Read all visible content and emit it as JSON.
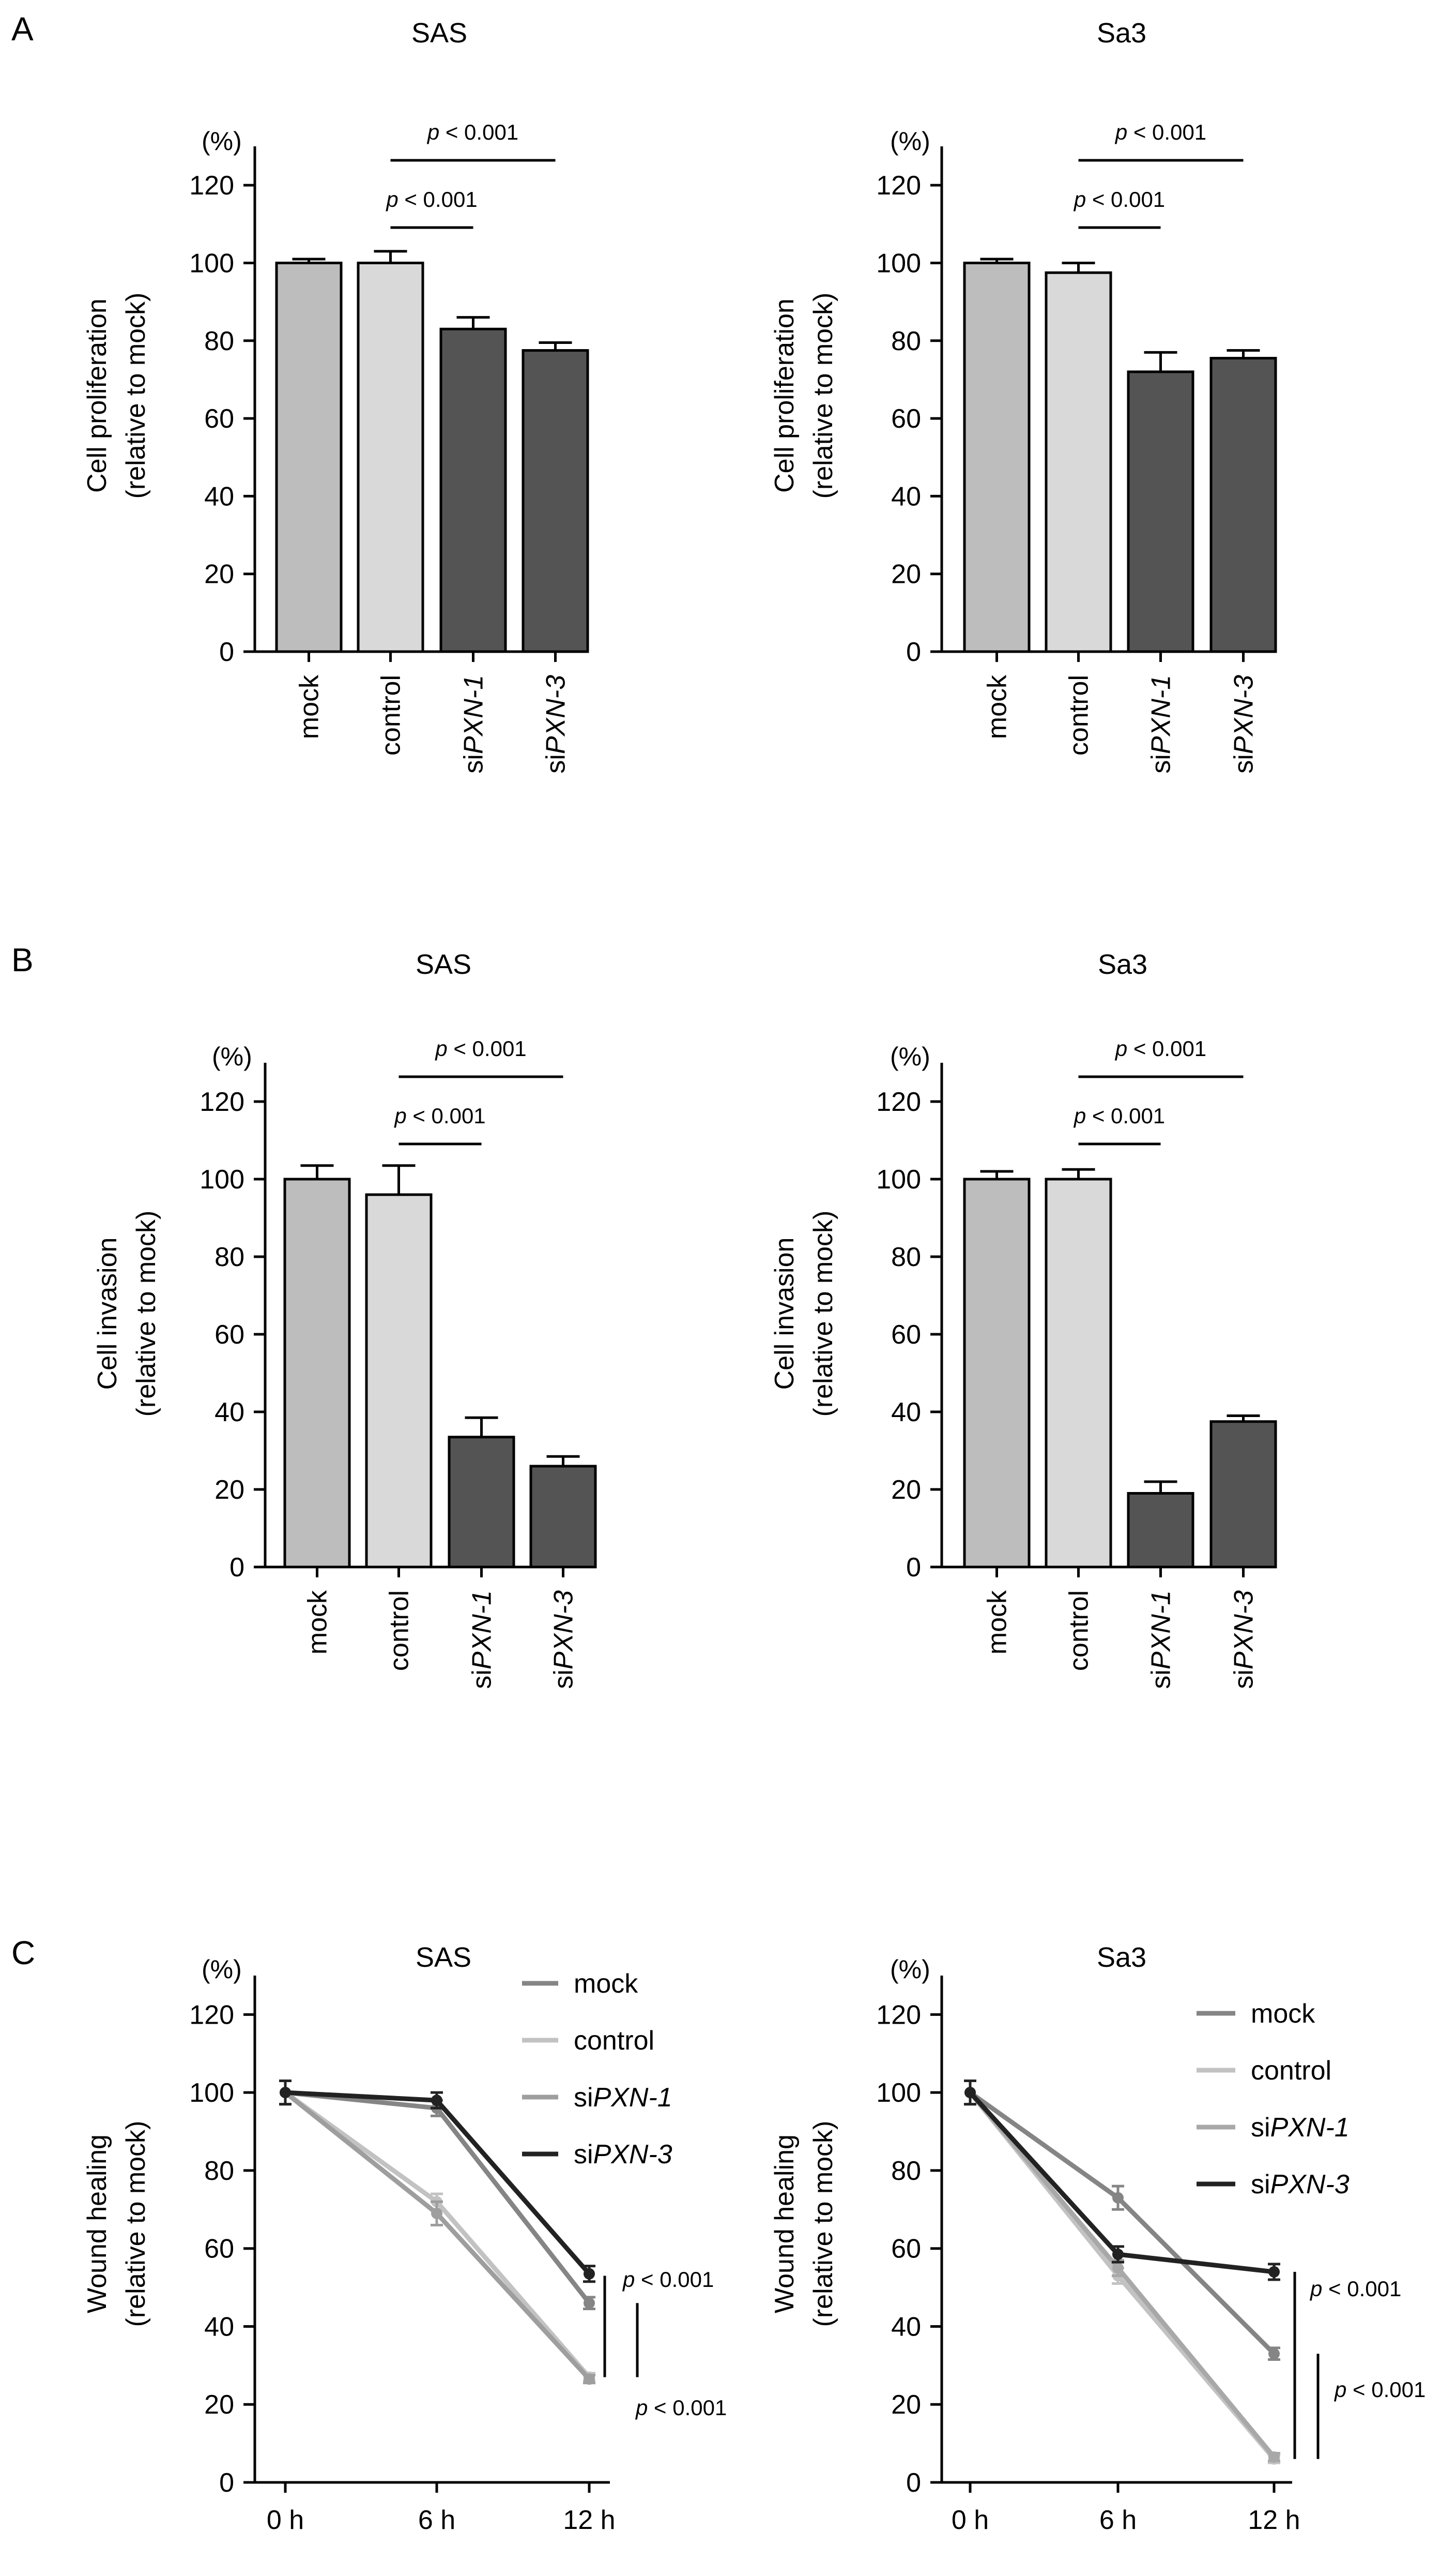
{
  "panels": [
    "A",
    "B",
    "C"
  ],
  "chart_data": [
    {
      "id": "a_sas",
      "panel": "A",
      "type": "bar",
      "title": "SAS",
      "unit_label": "(%)",
      "ylabel_line1": "Cell proliferation",
      "ylabel_line2": "(relative to mock)",
      "ylim": [
        0,
        130
      ],
      "yticks": [
        0,
        20,
        40,
        60,
        80,
        100,
        120
      ],
      "categories": [
        {
          "pre": "",
          "ital": "mock",
          "italic": false
        },
        {
          "pre": "",
          "ital": "control",
          "italic": false
        },
        {
          "pre": "si",
          "ital": "PXN-1",
          "italic": true
        },
        {
          "pre": "si",
          "ital": "PXN-3",
          "italic": true
        }
      ],
      "values": [
        100,
        100,
        83,
        77.5
      ],
      "errors": [
        1,
        3,
        3,
        2
      ],
      "bar_colors": [
        "#bdbdbd",
        "#d9d9d9",
        "#545454",
        "#545454"
      ],
      "significance": [
        {
          "from": 1,
          "to": 2,
          "label": "< 0.001",
          "level": 0
        },
        {
          "from": 1,
          "to": 3,
          "label": "< 0.001",
          "level": 1
        }
      ]
    },
    {
      "id": "a_sa3",
      "panel": "A",
      "type": "bar",
      "title": "Sa3",
      "unit_label": "(%)",
      "ylabel_line1": "Cell proliferation",
      "ylabel_line2": "(relative to mock)",
      "ylim": [
        0,
        130
      ],
      "yticks": [
        0,
        20,
        40,
        60,
        80,
        100,
        120
      ],
      "categories": [
        {
          "pre": "",
          "ital": "mock",
          "italic": false
        },
        {
          "pre": "",
          "ital": "control",
          "italic": false
        },
        {
          "pre": "si",
          "ital": "PXN-1",
          "italic": true
        },
        {
          "pre": "si",
          "ital": "PXN-3",
          "italic": true
        }
      ],
      "values": [
        100,
        97.5,
        72,
        75.5
      ],
      "errors": [
        1,
        2.5,
        5,
        2
      ],
      "bar_colors": [
        "#bdbdbd",
        "#d9d9d9",
        "#545454",
        "#545454"
      ],
      "significance": [
        {
          "from": 1,
          "to": 2,
          "label": "< 0.001",
          "level": 0
        },
        {
          "from": 1,
          "to": 3,
          "label": "< 0.001",
          "level": 1
        }
      ]
    },
    {
      "id": "b_sas",
      "panel": "B",
      "type": "bar",
      "title": "SAS",
      "unit_label": "(%)",
      "ylabel_line1": "Cell invasion",
      "ylabel_line2": "(relative to mock)",
      "ylim": [
        0,
        130
      ],
      "yticks": [
        0,
        20,
        40,
        60,
        80,
        100,
        120
      ],
      "categories": [
        {
          "pre": "",
          "ital": "mock",
          "italic": false
        },
        {
          "pre": "",
          "ital": "control",
          "italic": false
        },
        {
          "pre": "si",
          "ital": "PXN-1",
          "italic": true
        },
        {
          "pre": "si",
          "ital": "PXN-3",
          "italic": true
        }
      ],
      "values": [
        100,
        96,
        33.5,
        26
      ],
      "errors": [
        3.5,
        7.5,
        5,
        2.5
      ],
      "bar_colors": [
        "#bdbdbd",
        "#d9d9d9",
        "#545454",
        "#545454"
      ],
      "significance": [
        {
          "from": 1,
          "to": 2,
          "label": "< 0.001",
          "level": 0
        },
        {
          "from": 1,
          "to": 3,
          "label": "< 0.001",
          "level": 1
        }
      ]
    },
    {
      "id": "b_sa3",
      "panel": "B",
      "type": "bar",
      "title": "Sa3",
      "unit_label": "(%)",
      "ylabel_line1": "Cell invasion",
      "ylabel_line2": "(relative to mock)",
      "ylim": [
        0,
        130
      ],
      "yticks": [
        0,
        20,
        40,
        60,
        80,
        100,
        120
      ],
      "categories": [
        {
          "pre": "",
          "ital": "mock",
          "italic": false
        },
        {
          "pre": "",
          "ital": "control",
          "italic": false
        },
        {
          "pre": "si",
          "ital": "PXN-1",
          "italic": true
        },
        {
          "pre": "si",
          "ital": "PXN-3",
          "italic": true
        }
      ],
      "values": [
        100,
        100,
        19,
        37.5
      ],
      "errors": [
        2,
        2.5,
        3,
        1.5
      ],
      "bar_colors": [
        "#bdbdbd",
        "#d9d9d9",
        "#545454",
        "#545454"
      ],
      "significance": [
        {
          "from": 1,
          "to": 2,
          "label": "< 0.001",
          "level": 0
        },
        {
          "from": 1,
          "to": 3,
          "label": "< 0.001",
          "level": 1
        }
      ]
    },
    {
      "id": "c_sas",
      "panel": "C",
      "type": "line",
      "title": "SAS",
      "unit_label": "(%)",
      "ylabel_line1": "Wound healing",
      "ylabel_line2": "(relative to mock)",
      "ylim": [
        0,
        130
      ],
      "yticks": [
        0,
        20,
        40,
        60,
        80,
        100,
        120
      ],
      "x": [
        "0 h",
        "6 h",
        "12 h"
      ],
      "series": [
        {
          "pre": "",
          "ital": "mock",
          "italic": false,
          "color": "#858585",
          "values": [
            100,
            96,
            46
          ],
          "errors": [
            3,
            2,
            1.5
          ]
        },
        {
          "pre": "",
          "ital": "control",
          "italic": false,
          "color": "#c2c2c2",
          "values": [
            100,
            72,
            27
          ],
          "errors": [
            3,
            2,
            1
          ]
        },
        {
          "pre": "si",
          "ital": "PXN-1",
          "italic": true,
          "color": "#9e9e9e",
          "values": [
            100,
            69,
            26.5
          ],
          "errors": [
            3,
            3,
            1
          ]
        },
        {
          "pre": "si",
          "ital": "PXN-3",
          "italic": true,
          "color": "#222222",
          "values": [
            100,
            98,
            53.5
          ],
          "errors": [
            3,
            2,
            2
          ]
        }
      ],
      "significance": [
        {
          "label": "< 0.001",
          "from_value": 53,
          "to_value": 27,
          "pos": "upper"
        },
        {
          "label": "< 0.001",
          "from_value": 46,
          "to_value": 27,
          "pos": "lower"
        }
      ]
    },
    {
      "id": "c_sa3",
      "panel": "C",
      "type": "line",
      "title": "Sa3",
      "unit_label": "(%)",
      "ylabel_line1": "Wound healing",
      "ylabel_line2": "(relative to mock)",
      "ylim": [
        0,
        130
      ],
      "yticks": [
        0,
        20,
        40,
        60,
        80,
        100,
        120
      ],
      "x": [
        "0 h",
        "6 h",
        "12 h"
      ],
      "series": [
        {
          "pre": "",
          "ital": "mock",
          "italic": false,
          "color": "#858585",
          "values": [
            100,
            73,
            33
          ],
          "errors": [
            3,
            3,
            1.5
          ]
        },
        {
          "pre": "",
          "ital": "control",
          "italic": false,
          "color": "#c2c2c2",
          "values": [
            100,
            53,
            6
          ],
          "errors": [
            3,
            2,
            1
          ]
        },
        {
          "pre": "si",
          "ital": "PXN-1",
          "italic": true,
          "color": "#a8a8a8",
          "values": [
            100,
            55,
            6.5
          ],
          "errors": [
            3,
            2,
            1
          ]
        },
        {
          "pre": "si",
          "ital": "PXN-3",
          "italic": true,
          "color": "#222222",
          "values": [
            100,
            58.5,
            54
          ],
          "errors": [
            3,
            2,
            2
          ]
        }
      ],
      "significance": [
        {
          "label": "< 0.001",
          "from_value": 54,
          "to_value": 6,
          "pos": "upper"
        },
        {
          "label": "< 0.001",
          "from_value": 33,
          "to_value": 6,
          "pos": "lower"
        }
      ]
    }
  ]
}
